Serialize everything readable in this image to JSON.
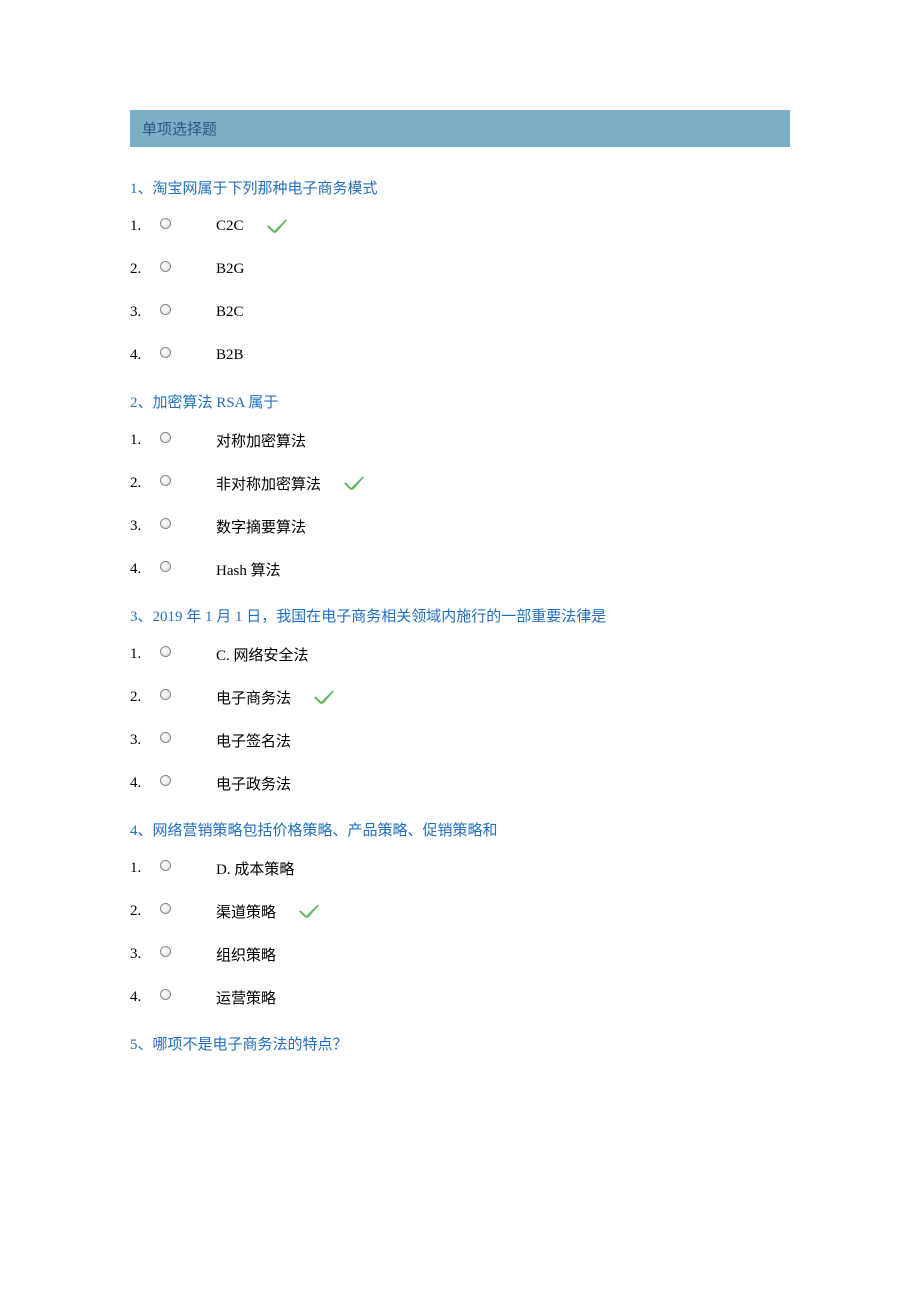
{
  "section_header": "单项选择题",
  "colors": {
    "header_bg": "#7aafc7",
    "header_text": "#2a5a7a",
    "question_color": "#2270c0",
    "body_text": "#000000",
    "checkmark_color": "#4caf50",
    "background": "#ffffff"
  },
  "questions": [
    {
      "title": "1、淘宝网属于下列那种电子商务模式",
      "options": [
        {
          "num": "1.",
          "text": "C2C",
          "correct": true
        },
        {
          "num": "2.",
          "text": "B2G",
          "correct": false
        },
        {
          "num": "3.",
          "text": "B2C",
          "correct": false
        },
        {
          "num": "4.",
          "text": "B2B",
          "correct": false
        }
      ]
    },
    {
      "title": "2、加密算法 RSA 属于",
      "options": [
        {
          "num": "1.",
          "text": "对称加密算法",
          "correct": false
        },
        {
          "num": "2.",
          "text": "非对称加密算法",
          "correct": true
        },
        {
          "num": "3.",
          "text": "数字摘要算法",
          "correct": false
        },
        {
          "num": "4.",
          "text": "Hash 算法",
          "correct": false
        }
      ]
    },
    {
      "title": "3、2019 年 1 月 1 日，我国在电子商务相关领域内施行的一部重要法律是",
      "options": [
        {
          "num": "1.",
          "text": "C. 网络安全法",
          "correct": false
        },
        {
          "num": "2.",
          "text": "电子商务法",
          "correct": true
        },
        {
          "num": "3.",
          "text": "电子签名法",
          "correct": false
        },
        {
          "num": "4.",
          "text": "电子政务法",
          "correct": false
        }
      ]
    },
    {
      "title": "4、网络营销策略包括价格策略、产品策略、促销策略和",
      "options": [
        {
          "num": "1.",
          "text": "D. 成本策略",
          "correct": false
        },
        {
          "num": "2.",
          "text": "渠道策略",
          "correct": true
        },
        {
          "num": "3.",
          "text": "组织策略",
          "correct": false
        },
        {
          "num": "4.",
          "text": "运营策略",
          "correct": false
        }
      ]
    },
    {
      "title": "5、哪项不是电子商务法的特点？",
      "options": []
    }
  ]
}
